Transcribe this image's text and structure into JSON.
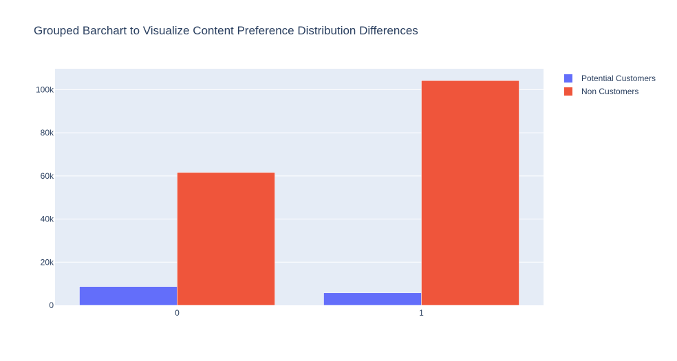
{
  "chart_data": {
    "type": "bar",
    "title": "Grouped Barchart to Visualize Content Preference Distribution Differences",
    "xlabel": "",
    "ylabel": "",
    "categories": [
      "0",
      "1"
    ],
    "series": [
      {
        "name": "Potential Customers",
        "values": [
          8700,
          5800
        ],
        "color": "#636efa"
      },
      {
        "name": "Non Customers",
        "values": [
          61600,
          104200
        ],
        "color": "#ef553b"
      }
    ],
    "ylim": [
      0,
      109700
    ],
    "yticks": [
      0,
      20000,
      40000,
      60000,
      80000,
      100000
    ],
    "ytick_labels": [
      "0",
      "20k",
      "40k",
      "60k",
      "80k",
      "100k"
    ],
    "grid": true,
    "legend_position": "top-right",
    "plot_background": "#e5ecf6"
  }
}
